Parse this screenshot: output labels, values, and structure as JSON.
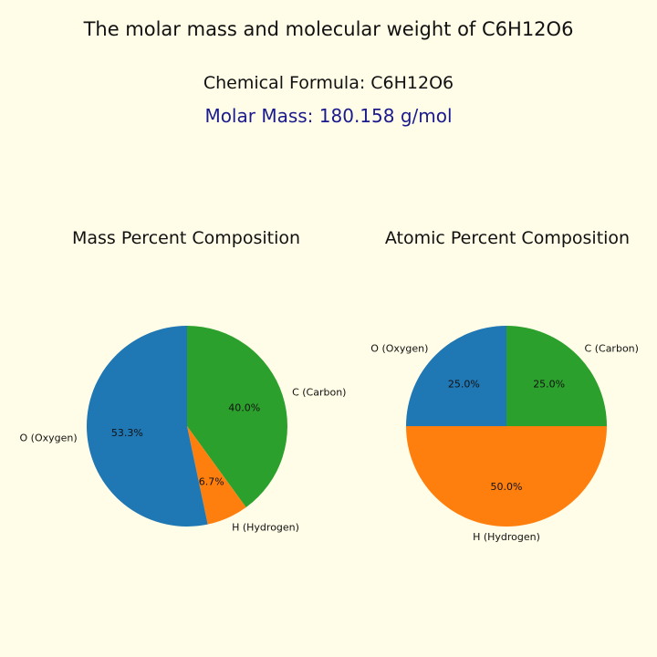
{
  "title": "The molar mass and molecular weight of C6H12O6",
  "formula_line": "Chemical Formula: C6H12O6",
  "molar_mass_line": "Molar Mass: 180.158 g/mol",
  "molar_mass_color": "#1a1a8c",
  "background": "#fffde7",
  "chart_data": [
    {
      "type": "pie",
      "title": "Mass Percent Composition",
      "slices": [
        {
          "label": "C (Carbon)",
          "value": 40.0,
          "pct_label": "40.0%",
          "color": "#2ca02c"
        },
        {
          "label": "H (Hydrogen)",
          "value": 6.7,
          "pct_label": "6.7%",
          "color": "#ff7f0e"
        },
        {
          "label": "O (Oxygen)",
          "value": 53.3,
          "pct_label": "53.3%",
          "color": "#1f77b4"
        }
      ],
      "start_angle_deg": 90,
      "direction": "clockwise"
    },
    {
      "type": "pie",
      "title": "Atomic Percent Composition",
      "slices": [
        {
          "label": "C (Carbon)",
          "value": 25.0,
          "pct_label": "25.0%",
          "color": "#2ca02c"
        },
        {
          "label": "H (Hydrogen)",
          "value": 50.0,
          "pct_label": "50.0%",
          "color": "#ff7f0e"
        },
        {
          "label": "O (Oxygen)",
          "value": 25.0,
          "pct_label": "25.0%",
          "color": "#1f77b4"
        }
      ],
      "start_angle_deg": 90,
      "direction": "clockwise"
    }
  ]
}
